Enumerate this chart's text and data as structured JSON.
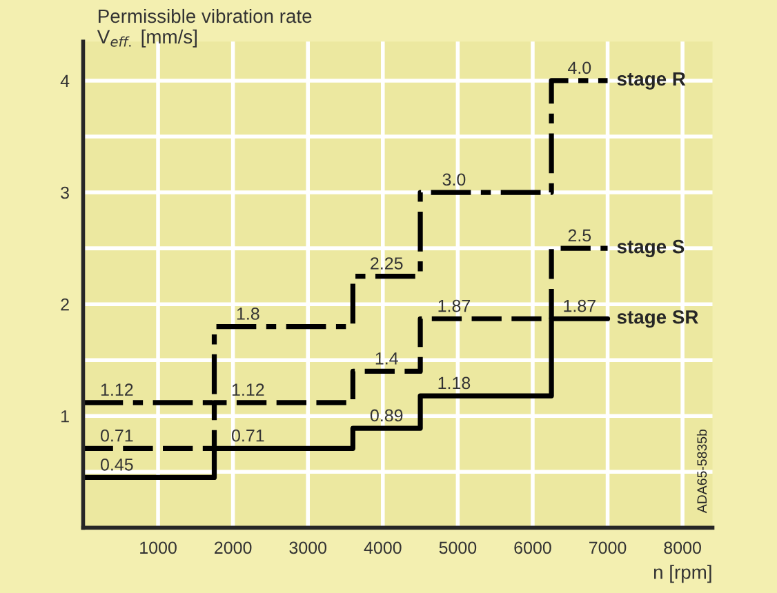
{
  "chart_data": {
    "type": "step",
    "xlabel": "n [rpm]",
    "ylabel": "Permissible vibration rate\nV$_{eff.}$ [mm/s]",
    "x": [
      0,
      1750,
      3600,
      4500,
      6250,
      7000
    ],
    "series": [
      {
        "name": "stage R",
        "color": "#000000",
        "line_style": "dashdot",
        "values": [
          1.12,
          1.8,
          2.25,
          3.0,
          4.0,
          4.0
        ],
        "value_labels": [
          "1.12",
          "1.8",
          "2.25",
          "3.0",
          "4.0",
          null
        ]
      },
      {
        "name": "stage S",
        "color": "#000000",
        "line_style": "dashed",
        "values": [
          0.71,
          1.12,
          1.4,
          1.87,
          2.5,
          2.5
        ],
        "value_labels": [
          "0.71",
          "1.12",
          "1.4",
          "1.87",
          "2.5",
          null
        ]
      },
      {
        "name": "stage SR",
        "color": "#000000",
        "line_style": "solid",
        "values": [
          0.45,
          0.71,
          0.89,
          1.18,
          1.87,
          1.87
        ],
        "value_labels": [
          "0.45",
          "0.71",
          "0.89",
          "1.18",
          "1.87",
          null
        ]
      }
    ],
    "xlim": [
      0,
      8400
    ],
    "ylim": [
      0,
      4.35
    ],
    "xticks": [
      1000,
      2000,
      3000,
      4000,
      5000,
      6000,
      7000,
      8000
    ],
    "yticks": [
      {
        "value": 0.5,
        "label": null
      },
      1,
      {
        "value": 1.5,
        "label": null
      },
      2,
      {
        "value": 2.5,
        "label": null
      },
      3,
      {
        "value": 3.5,
        "label": null
      },
      4
    ],
    "grid": true,
    "legend": false,
    "annotations": [
      "ADA65-5835b"
    ]
  }
}
